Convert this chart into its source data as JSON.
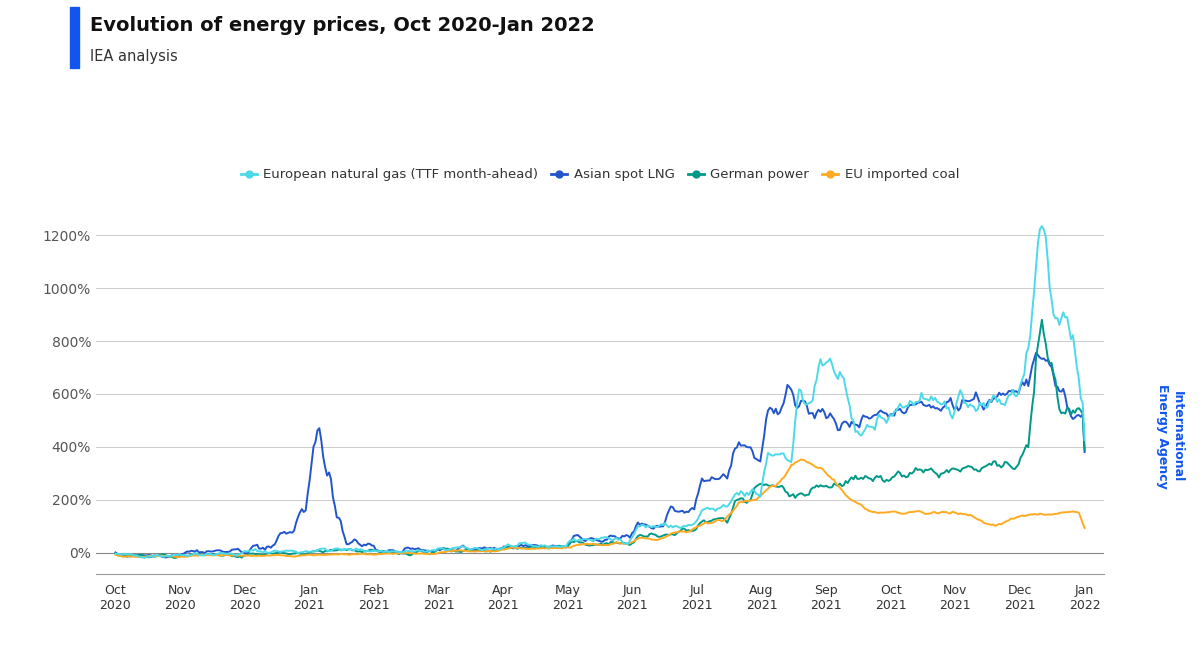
{
  "title": "Evolution of energy prices, Oct 2020-Jan 2022",
  "subtitle": "IEA analysis",
  "watermark_line1": "International",
  "watermark_line2": "Energy Agency",
  "legend_entries": [
    "European natural gas (TTF month-ahead)",
    "Asian spot LNG",
    "German power",
    "EU imported coal"
  ],
  "colors": {
    "ttf": "#4DD9E8",
    "lng": "#2255CC",
    "power": "#009988",
    "coal": "#FFAA22"
  },
  "title_bar_color": "#1155EE",
  "tick_label_months": [
    "Oct\n2020",
    "Nov\n2020",
    "Dec\n2020",
    "Jan\n2021",
    "Feb\n2021",
    "Mar\n2021",
    "Apr\n2021",
    "May\n2021",
    "Jun\n2021",
    "Jul\n2021",
    "Aug\n2021",
    "Sep\n2021",
    "Oct\n2021",
    "Nov\n2021",
    "Dec\n2021",
    "Jan\n2022"
  ],
  "ylim": [
    -80,
    1350
  ],
  "yticks": [
    0,
    200,
    400,
    600,
    800,
    1000,
    1200
  ],
  "background_color": "#ffffff",
  "watermark_color": "#1155EE"
}
